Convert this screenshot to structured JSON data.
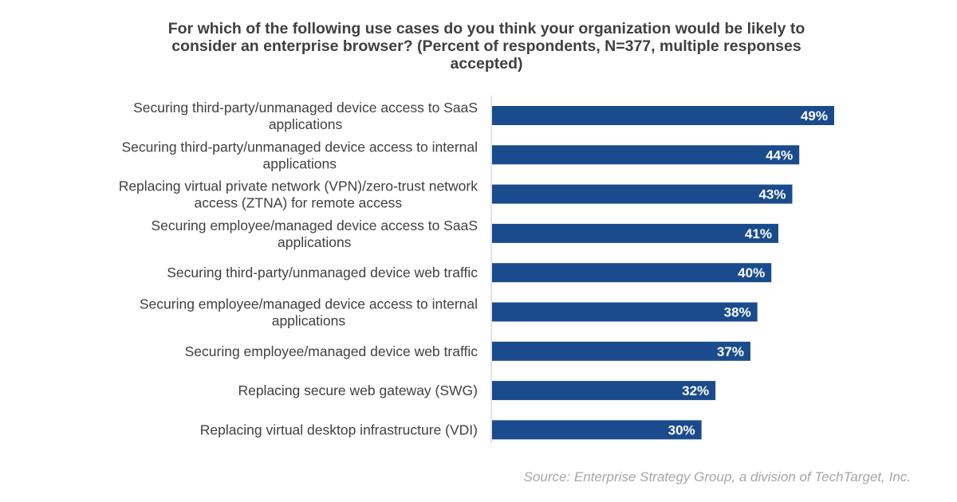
{
  "chart_data": {
    "type": "bar",
    "orientation": "horizontal",
    "title": "For which of the following use cases do you think your organization would be likely to consider an enterprise browser? (Percent of respondents, N=377, multiple responses accepted)",
    "categories": [
      [
        "Securing third-party/unmanaged device access to SaaS",
        "applications"
      ],
      [
        "Securing third-party/unmanaged device access to internal",
        "applications"
      ],
      [
        "Replacing virtual private network (VPN)/zero-trust network",
        "access (ZTNA) for remote access"
      ],
      [
        "Securing employee/managed device access to SaaS",
        "applications"
      ],
      [
        "Securing third-party/unmanaged device web traffic"
      ],
      [
        "Securing employee/managed device access to internal",
        "applications"
      ],
      [
        "Securing employee/managed device web traffic"
      ],
      [
        "Replacing secure web gateway (SWG)"
      ],
      [
        "Replacing virtual desktop infrastructure (VDI)"
      ]
    ],
    "values": [
      49,
      44,
      43,
      41,
      40,
      38,
      37,
      32,
      30
    ],
    "value_labels": [
      "49%",
      "44%",
      "43%",
      "41%",
      "40%",
      "38%",
      "37%",
      "32%",
      "30%"
    ],
    "unit": "%",
    "xlim": [
      0,
      49
    ],
    "grid": false,
    "bar_color": "#1a4b8c",
    "label_color": "#ffffff",
    "legend": "none"
  },
  "source": "Source: Enterprise Strategy Group, a division of TechTarget, Inc."
}
